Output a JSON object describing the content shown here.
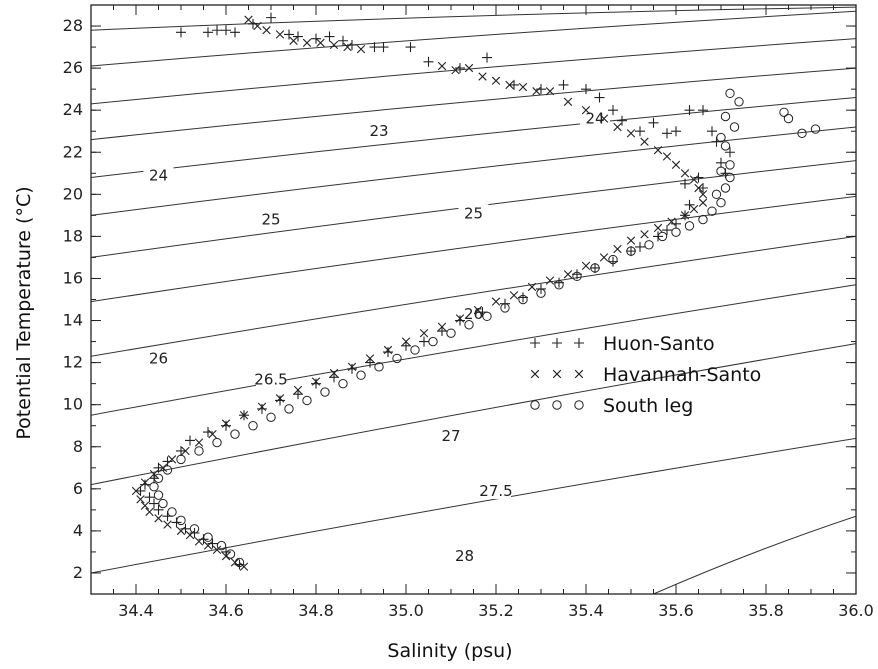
{
  "chart_data": {
    "type": "scatter",
    "title": "",
    "xlabel": "Salinity (psu)",
    "ylabel": "Potential Temperature (°C)",
    "xlim": [
      34.3,
      36.0
    ],
    "ylim": [
      1,
      29
    ],
    "x_ticks": [
      "34.4",
      "34.6",
      "34.8",
      "35.0",
      "35.2",
      "35.4",
      "35.6",
      "35.8",
      "36.0"
    ],
    "y_ticks": [
      "2",
      "4",
      "6",
      "8",
      "10",
      "12",
      "14",
      "16",
      "18",
      "20",
      "22",
      "24",
      "26",
      "28"
    ],
    "grid": false,
    "legend_position": "center-right",
    "density_contours": {
      "labeled": [
        {
          "label": "23",
          "s": 34.94,
          "t": 23.0
        },
        {
          "label": "24",
          "s": 35.42,
          "t": 23.6
        },
        {
          "label": "24",
          "s": 34.45,
          "t": 20.9
        },
        {
          "label": "25",
          "s": 34.7,
          "t": 18.8
        },
        {
          "label": "25",
          "s": 35.15,
          "t": 19.1
        },
        {
          "label": "26",
          "s": 35.15,
          "t": 14.3
        },
        {
          "label": "26",
          "s": 34.45,
          "t": 12.2
        },
        {
          "label": "26.5",
          "s": 34.7,
          "t": 11.2
        },
        {
          "label": "27",
          "s": 35.1,
          "t": 8.5
        },
        {
          "label": "27.5",
          "s": 35.2,
          "t": 5.9
        },
        {
          "label": "28",
          "s": 35.13,
          "t": 2.8
        }
      ],
      "lines": [
        {
          "t0": 27.8,
          "t1": 28.9,
          "s_end": 36.0
        },
        {
          "t0": 26.1,
          "t1": 28.7,
          "s_end": 36.0
        },
        {
          "t0": 24.3,
          "t1": 27.4,
          "s_end": 36.0
        },
        {
          "t0": 22.6,
          "t1": 26.0,
          "s_end": 36.0
        },
        {
          "t0": 20.8,
          "t1": 24.6,
          "s_end": 36.0
        },
        {
          "t0": 19.0,
          "t1": 23.2,
          "s_end": 36.0
        },
        {
          "t0": 17.0,
          "t1": 21.6,
          "s_end": 36.0
        },
        {
          "t0": 14.9,
          "t1": 19.9,
          "s_end": 36.0
        },
        {
          "t0": 12.3,
          "t1": 18.0,
          "s_end": 36.0
        },
        {
          "t0": 9.5,
          "t1": 15.7,
          "s_end": 36.0
        },
        {
          "t0": 6.2,
          "t1": 12.9,
          "s_end": 36.0
        },
        {
          "t0": 2.0,
          "t1": 8.4,
          "s_end": 36.0
        },
        {
          "t0": 1.0,
          "t1": 4.7,
          "s_end": 36.0,
          "s_start": 35.55
        }
      ]
    },
    "series": [
      {
        "name": "Huon-Santo",
        "marker": "+",
        "points": [
          [
            34.5,
            27.7
          ],
          [
            34.56,
            27.7
          ],
          [
            34.58,
            27.8
          ],
          [
            34.6,
            27.8
          ],
          [
            34.62,
            27.7
          ],
          [
            34.66,
            28.1
          ],
          [
            34.7,
            28.4
          ],
          [
            34.74,
            27.6
          ],
          [
            34.76,
            27.5
          ],
          [
            34.8,
            27.4
          ],
          [
            34.83,
            27.5
          ],
          [
            34.86,
            27.3
          ],
          [
            34.88,
            27.1
          ],
          [
            34.93,
            27.0
          ],
          [
            34.95,
            27.0
          ],
          [
            35.01,
            27.0
          ],
          [
            35.05,
            26.3
          ],
          [
            35.12,
            26.0
          ],
          [
            35.18,
            26.5
          ],
          [
            35.24,
            25.2
          ],
          [
            35.3,
            25.0
          ],
          [
            35.35,
            25.2
          ],
          [
            35.4,
            25.0
          ],
          [
            35.43,
            24.6
          ],
          [
            35.46,
            24.0
          ],
          [
            35.48,
            23.5
          ],
          [
            35.52,
            23.0
          ],
          [
            35.55,
            23.4
          ],
          [
            35.58,
            22.9
          ],
          [
            35.6,
            23.0
          ],
          [
            35.63,
            24.0
          ],
          [
            35.66,
            24.0
          ],
          [
            35.68,
            23.0
          ],
          [
            35.69,
            22.5
          ],
          [
            35.7,
            21.5
          ],
          [
            35.71,
            21.0
          ],
          [
            35.72,
            22.0
          ],
          [
            35.62,
            20.5
          ],
          [
            35.66,
            20.3
          ],
          [
            35.65,
            20.8
          ],
          [
            35.63,
            19.5
          ],
          [
            35.62,
            19.0
          ],
          [
            35.6,
            18.6
          ],
          [
            35.58,
            18.3
          ],
          [
            35.56,
            18.0
          ],
          [
            35.52,
            17.5
          ],
          [
            35.5,
            17.3
          ],
          [
            35.46,
            16.8
          ],
          [
            35.42,
            16.5
          ],
          [
            35.38,
            16.2
          ],
          [
            35.34,
            15.8
          ],
          [
            35.3,
            15.5
          ],
          [
            35.26,
            15.1
          ],
          [
            35.22,
            14.8
          ],
          [
            35.17,
            14.4
          ],
          [
            35.12,
            14.0
          ],
          [
            35.08,
            13.5
          ],
          [
            35.04,
            13.0
          ],
          [
            35.0,
            12.8
          ],
          [
            34.96,
            12.5
          ],
          [
            34.92,
            12.0
          ],
          [
            34.88,
            11.7
          ],
          [
            34.84,
            11.3
          ],
          [
            34.8,
            11.0
          ],
          [
            34.76,
            10.5
          ],
          [
            34.72,
            10.2
          ],
          [
            34.68,
            9.8
          ],
          [
            34.64,
            9.5
          ],
          [
            34.6,
            9.0
          ],
          [
            34.56,
            8.7
          ],
          [
            34.52,
            8.3
          ],
          [
            34.5,
            7.8
          ],
          [
            34.47,
            7.3
          ],
          [
            34.45,
            7.0
          ],
          [
            34.44,
            6.5
          ],
          [
            34.42,
            6.2
          ],
          [
            34.41,
            5.9
          ],
          [
            34.43,
            5.6
          ],
          [
            34.44,
            5.3
          ],
          [
            34.45,
            5.0
          ],
          [
            34.47,
            4.7
          ],
          [
            34.49,
            4.4
          ],
          [
            34.51,
            4.1
          ],
          [
            34.53,
            3.9
          ],
          [
            34.55,
            3.6
          ],
          [
            34.57,
            3.4
          ],
          [
            34.6,
            3.0
          ],
          [
            34.63,
            2.4
          ]
        ]
      },
      {
        "name": "Havannah-Santo",
        "marker": "x",
        "points": [
          [
            34.65,
            28.3
          ],
          [
            34.67,
            28.0
          ],
          [
            34.69,
            27.8
          ],
          [
            34.72,
            27.6
          ],
          [
            34.75,
            27.3
          ],
          [
            34.78,
            27.2
          ],
          [
            34.81,
            27.2
          ],
          [
            34.84,
            27.1
          ],
          [
            34.87,
            27.0
          ],
          [
            34.9,
            26.9
          ],
          [
            35.08,
            26.1
          ],
          [
            35.11,
            25.9
          ],
          [
            35.14,
            26.0
          ],
          [
            35.17,
            25.6
          ],
          [
            35.2,
            25.4
          ],
          [
            35.23,
            25.2
          ],
          [
            35.26,
            25.1
          ],
          [
            35.29,
            24.9
          ],
          [
            35.32,
            24.9
          ],
          [
            35.36,
            24.4
          ],
          [
            35.4,
            24.0
          ],
          [
            35.44,
            23.6
          ],
          [
            35.47,
            23.2
          ],
          [
            35.5,
            22.9
          ],
          [
            35.53,
            22.5
          ],
          [
            35.56,
            22.1
          ],
          [
            35.58,
            21.8
          ],
          [
            35.6,
            21.4
          ],
          [
            35.62,
            21.0
          ],
          [
            35.64,
            20.7
          ],
          [
            35.65,
            20.3
          ],
          [
            35.66,
            20.0
          ],
          [
            35.66,
            19.6
          ],
          [
            35.64,
            19.3
          ],
          [
            35.62,
            19.0
          ],
          [
            35.59,
            18.7
          ],
          [
            35.56,
            18.4
          ],
          [
            35.53,
            18.1
          ],
          [
            35.5,
            17.8
          ],
          [
            35.47,
            17.4
          ],
          [
            35.44,
            17.0
          ],
          [
            35.4,
            16.6
          ],
          [
            35.36,
            16.2
          ],
          [
            35.32,
            15.9
          ],
          [
            35.28,
            15.6
          ],
          [
            35.24,
            15.2
          ],
          [
            35.2,
            14.9
          ],
          [
            35.16,
            14.5
          ],
          [
            35.12,
            14.1
          ],
          [
            35.08,
            13.7
          ],
          [
            35.04,
            13.4
          ],
          [
            35.0,
            13.0
          ],
          [
            34.96,
            12.6
          ],
          [
            34.92,
            12.2
          ],
          [
            34.88,
            11.8
          ],
          [
            34.84,
            11.5
          ],
          [
            34.8,
            11.1
          ],
          [
            34.76,
            10.7
          ],
          [
            34.72,
            10.3
          ],
          [
            34.68,
            9.9
          ],
          [
            34.64,
            9.5
          ],
          [
            34.6,
            9.1
          ],
          [
            34.57,
            8.6
          ],
          [
            34.54,
            8.2
          ],
          [
            34.51,
            7.8
          ],
          [
            34.48,
            7.4
          ],
          [
            34.46,
            7.0
          ],
          [
            34.44,
            6.7
          ],
          [
            34.42,
            6.3
          ],
          [
            34.4,
            5.9
          ],
          [
            34.41,
            5.5
          ],
          [
            34.42,
            5.2
          ],
          [
            34.43,
            4.9
          ],
          [
            34.45,
            4.6
          ],
          [
            34.47,
            4.3
          ],
          [
            34.5,
            4.0
          ],
          [
            34.52,
            3.8
          ],
          [
            34.54,
            3.5
          ],
          [
            34.56,
            3.3
          ],
          [
            34.58,
            3.1
          ],
          [
            34.6,
            2.8
          ],
          [
            34.62,
            2.5
          ],
          [
            34.64,
            2.3
          ]
        ]
      },
      {
        "name": "South leg",
        "marker": "o",
        "points": [
          [
            35.72,
            24.8
          ],
          [
            35.74,
            24.4
          ],
          [
            35.71,
            23.7
          ],
          [
            35.73,
            23.2
          ],
          [
            35.84,
            23.9
          ],
          [
            35.85,
            23.6
          ],
          [
            35.88,
            22.9
          ],
          [
            35.91,
            23.1
          ],
          [
            35.7,
            22.7
          ],
          [
            35.71,
            22.3
          ],
          [
            35.72,
            21.4
          ],
          [
            35.7,
            21.1
          ],
          [
            35.72,
            20.8
          ],
          [
            35.71,
            20.3
          ],
          [
            35.69,
            20.0
          ],
          [
            35.7,
            19.6
          ],
          [
            35.68,
            19.2
          ],
          [
            35.66,
            18.8
          ],
          [
            35.63,
            18.5
          ],
          [
            35.6,
            18.2
          ],
          [
            35.57,
            18.0
          ],
          [
            35.54,
            17.6
          ],
          [
            35.5,
            17.3
          ],
          [
            35.46,
            16.9
          ],
          [
            35.42,
            16.5
          ],
          [
            35.38,
            16.1
          ],
          [
            35.34,
            15.7
          ],
          [
            35.3,
            15.3
          ],
          [
            35.26,
            15.0
          ],
          [
            35.22,
            14.6
          ],
          [
            35.18,
            14.2
          ],
          [
            35.14,
            13.8
          ],
          [
            35.1,
            13.4
          ],
          [
            35.06,
            13.0
          ],
          [
            35.02,
            12.6
          ],
          [
            34.98,
            12.2
          ],
          [
            34.94,
            11.8
          ],
          [
            34.9,
            11.4
          ],
          [
            34.86,
            11.0
          ],
          [
            34.82,
            10.6
          ],
          [
            34.78,
            10.2
          ],
          [
            34.74,
            9.8
          ],
          [
            34.7,
            9.4
          ],
          [
            34.66,
            9.0
          ],
          [
            34.62,
            8.6
          ],
          [
            34.58,
            8.2
          ],
          [
            34.54,
            7.8
          ],
          [
            34.5,
            7.4
          ],
          [
            34.47,
            6.9
          ],
          [
            34.45,
            6.5
          ],
          [
            34.44,
            6.1
          ],
          [
            34.45,
            5.7
          ],
          [
            34.46,
            5.3
          ],
          [
            34.48,
            4.9
          ],
          [
            34.5,
            4.5
          ],
          [
            34.53,
            4.1
          ],
          [
            34.56,
            3.7
          ],
          [
            34.59,
            3.3
          ],
          [
            34.61,
            2.9
          ],
          [
            34.63,
            2.5
          ]
        ]
      }
    ]
  }
}
